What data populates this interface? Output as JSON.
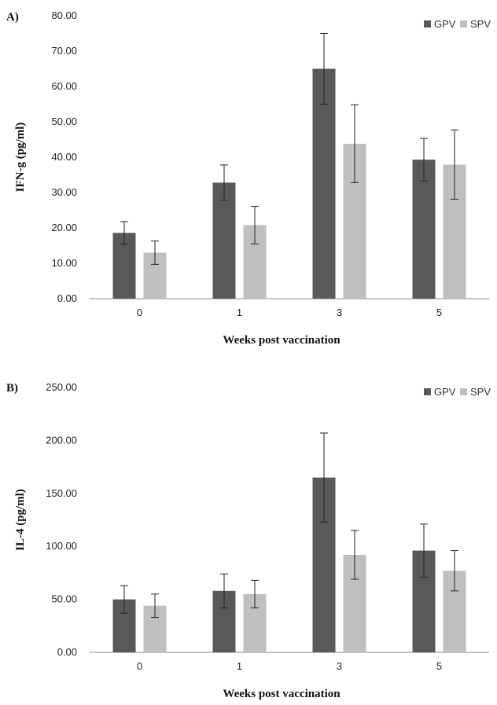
{
  "colors": {
    "GPV": "#595959",
    "SPV": "#bfbfbf",
    "axis": "#888888",
    "error_bar": "#222222"
  },
  "chart_data": [
    {
      "panel_label": "A)",
      "type": "bar",
      "xlabel": "Weeks post vaccination",
      "ylabel": "IFN-g (pg/ml)",
      "ylim": [
        0,
        80
      ],
      "ytick_step": 10,
      "ytick_labels": [
        "0.00",
        "10.00",
        "20.00",
        "30.00",
        "40.00",
        "50.00",
        "60.00",
        "70.00",
        "80.00"
      ],
      "categories": [
        "0",
        "1",
        "3",
        "5"
      ],
      "legend_position": "top-right",
      "series": [
        {
          "name": "GPV",
          "values": [
            18.6,
            32.8,
            65.0,
            39.3
          ],
          "errors": [
            3.2,
            5.0,
            10.0,
            6.0
          ]
        },
        {
          "name": "SPV",
          "values": [
            13.0,
            20.8,
            43.8,
            37.9
          ],
          "errors": [
            3.3,
            5.3,
            11.0,
            9.8
          ]
        }
      ]
    },
    {
      "panel_label": "B)",
      "type": "bar",
      "xlabel": "Weeks post vaccination",
      "ylabel": "IL-4 (pg/ml)",
      "ylim": [
        0,
        250
      ],
      "ytick_step": 50,
      "ytick_labels": [
        "0.00",
        "50.00",
        "100.00",
        "150.00",
        "200.00",
        "250.00"
      ],
      "categories": [
        "0",
        "1",
        "3",
        "5"
      ],
      "legend_position": "top-right",
      "series": [
        {
          "name": "GPV",
          "values": [
            50.0,
            58.0,
            165.0,
            96.0
          ],
          "errors": [
            13.0,
            16.0,
            42.0,
            25.0
          ]
        },
        {
          "name": "SPV",
          "values": [
            44.0,
            55.0,
            92.0,
            77.0
          ],
          "errors": [
            11.0,
            13.0,
            23.0,
            19.0
          ]
        }
      ]
    }
  ]
}
